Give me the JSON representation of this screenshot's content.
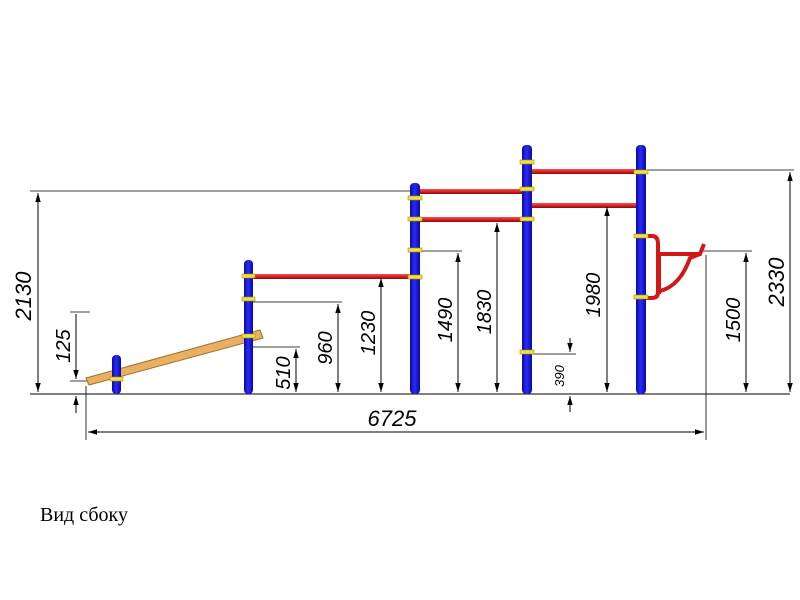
{
  "caption": "Вид сбоку",
  "colors": {
    "post": "#1414d2",
    "post_highlight": "#6a6aff",
    "bar": "#d01818",
    "clamp": "#f0e040",
    "board": "#e8b060",
    "line": "#000000"
  },
  "dimensions": {
    "overall_length": "6725",
    "left_height": "2130",
    "board_low": "125",
    "step_1": "510",
    "step_2": "960",
    "step_3": "1230",
    "step_4": "1490",
    "step_5": "1830",
    "step_6": "390",
    "step_7": "1980",
    "step_8": "1500",
    "right_height": "2330"
  }
}
